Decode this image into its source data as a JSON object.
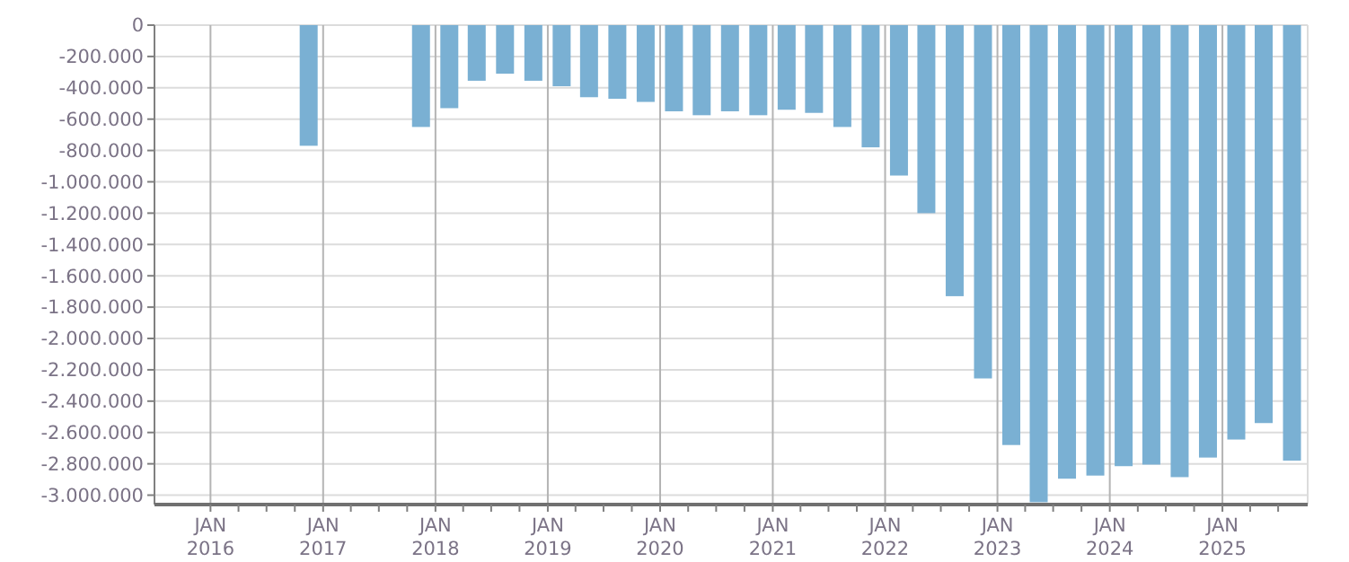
{
  "chart_data": {
    "type": "bar",
    "x": [
      "2016-11-15",
      "2017-11-15",
      "2018-02-15",
      "2018-05-15",
      "2018-08-15",
      "2018-11-15",
      "2019-02-15",
      "2019-05-15",
      "2019-08-15",
      "2019-11-15",
      "2020-02-15",
      "2020-05-15",
      "2020-08-15",
      "2020-11-15",
      "2021-02-15",
      "2021-05-15",
      "2021-08-15",
      "2021-11-15",
      "2022-02-15",
      "2022-05-15",
      "2022-08-15",
      "2022-11-15",
      "2023-02-15",
      "2023-05-15",
      "2023-08-15",
      "2023-11-15",
      "2024-02-15",
      "2024-05-15",
      "2024-08-15",
      "2024-11-15",
      "2025-02-15",
      "2025-05-15",
      "2025-08-15"
    ],
    "values": [
      -770000,
      -650000,
      -530000,
      -355000,
      -310000,
      -355000,
      -390000,
      -460000,
      -470000,
      -490000,
      -550000,
      -575000,
      -550000,
      -575000,
      -540000,
      -560000,
      -650000,
      -780000,
      -960000,
      -1200000,
      -1730000,
      -2255000,
      -2680000,
      -3045000,
      -2895000,
      -2875000,
      -2815000,
      -2805000,
      -2885000,
      -2760000,
      -2645000,
      -2540000,
      -2780000
    ],
    "color": "#7ab0d3",
    "xlim": [
      "2015-07-03",
      "2025-10-05"
    ],
    "xticks": [
      {
        "value": "2016-01-01",
        "label": "JAN 2016"
      },
      {
        "value": "2016-04-01",
        "label": null
      },
      {
        "value": "2016-07-01",
        "label": null
      },
      {
        "value": "2016-10-01",
        "label": null
      },
      {
        "value": "2017-01-01",
        "label": "JAN 2017"
      },
      {
        "value": "2017-04-01",
        "label": null
      },
      {
        "value": "2017-07-01",
        "label": null
      },
      {
        "value": "2017-10-01",
        "label": null
      },
      {
        "value": "2018-01-01",
        "label": "JAN 2018"
      },
      {
        "value": "2018-04-01",
        "label": null
      },
      {
        "value": "2018-07-01",
        "label": null
      },
      {
        "value": "2018-10-01",
        "label": null
      },
      {
        "value": "2019-01-01",
        "label": "JAN 2019"
      },
      {
        "value": "2019-04-01",
        "label": null
      },
      {
        "value": "2019-07-01",
        "label": null
      },
      {
        "value": "2019-10-01",
        "label": null
      },
      {
        "value": "2020-01-01",
        "label": "JAN 2020"
      },
      {
        "value": "2020-04-01",
        "label": null
      },
      {
        "value": "2020-07-01",
        "label": null
      },
      {
        "value": "2020-10-01",
        "label": null
      },
      {
        "value": "2021-01-01",
        "label": "JAN 2021"
      },
      {
        "value": "2021-04-01",
        "label": null
      },
      {
        "value": "2021-07-01",
        "label": null
      },
      {
        "value": "2021-10-01",
        "label": null
      },
      {
        "value": "2022-01-01",
        "label": "JAN 2022"
      },
      {
        "value": "2022-04-01",
        "label": null
      },
      {
        "value": "2022-07-01",
        "label": null
      },
      {
        "value": "2022-10-01",
        "label": null
      },
      {
        "value": "2023-01-01",
        "label": "JAN 2023"
      },
      {
        "value": "2023-04-01",
        "label": null
      },
      {
        "value": "2023-07-01",
        "label": null
      },
      {
        "value": "2023-10-01",
        "label": null
      },
      {
        "value": "2024-01-01",
        "label": "JAN 2024"
      },
      {
        "value": "2024-04-01",
        "label": null
      },
      {
        "value": "2024-07-01",
        "label": null
      },
      {
        "value": "2024-10-01",
        "label": null
      },
      {
        "value": "2025-01-01",
        "label": "JAN 2025"
      },
      {
        "value": "2025-04-01",
        "label": null
      },
      {
        "value": "2025-07-01",
        "label": null
      }
    ],
    "ylim": [
      -3060000,
      0
    ],
    "yticks": [
      0,
      {
        "value": -200000,
        "label": "-200.000"
      },
      {
        "value": -400000,
        "label": "-400.000"
      },
      {
        "value": -600000,
        "label": "-600.000"
      },
      {
        "value": -800000,
        "label": "-800.000"
      },
      {
        "value": -1000000,
        "label": "-1.000.000"
      },
      {
        "value": -1200000,
        "label": "-1.200.000"
      },
      {
        "value": -1400000,
        "label": "-1.400.000"
      },
      {
        "value": -1600000,
        "label": "-1.600.000"
      },
      {
        "value": -1800000,
        "label": "-1.800.000"
      },
      {
        "value": -2000000,
        "label": "-2.000.000"
      },
      {
        "value": -2200000,
        "label": "-2.200.000"
      },
      {
        "value": -2400000,
        "label": "-2.400.000"
      },
      {
        "value": -2600000,
        "label": "-2.600.000"
      },
      {
        "value": -2800000,
        "label": "-2.800.000"
      },
      {
        "value": -3000000,
        "label": "-3.000.000"
      }
    ],
    "grid": true
  }
}
